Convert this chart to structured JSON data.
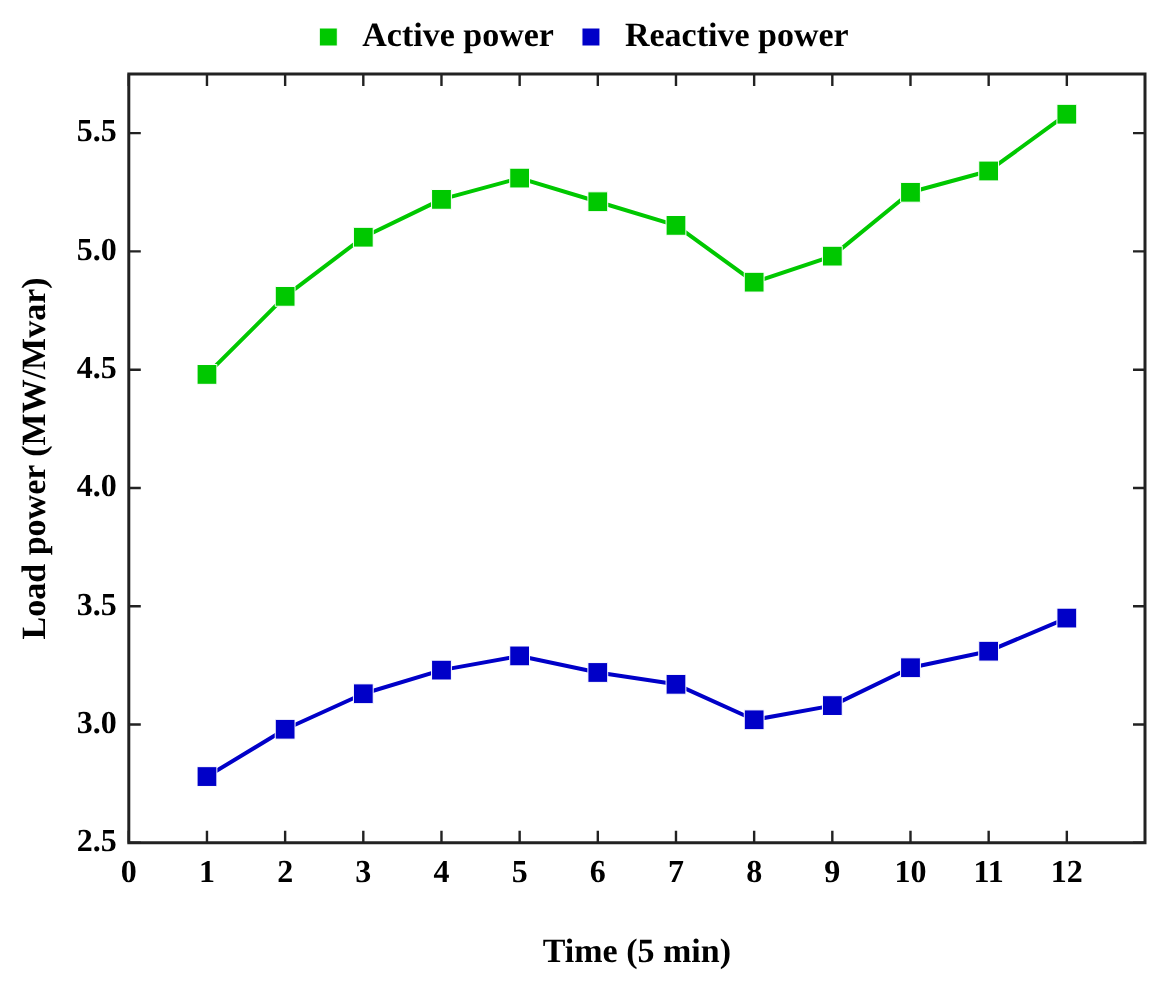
{
  "chart_data": {
    "type": "line",
    "xlabel": "Time (5 min)",
    "ylabel": "Load power (MW/Mvar)",
    "x": [
      1,
      2,
      3,
      4,
      5,
      6,
      7,
      8,
      9,
      10,
      11,
      12
    ],
    "series": [
      {
        "name": "Active power",
        "color": "#00c800",
        "values": [
          4.48,
          4.81,
          5.06,
          5.22,
          5.31,
          5.21,
          5.11,
          4.87,
          4.98,
          5.25,
          5.34,
          5.58
        ]
      },
      {
        "name": "Reactive power",
        "color": "#0000c8",
        "values": [
          2.78,
          2.98,
          3.13,
          3.23,
          3.29,
          3.22,
          3.17,
          3.02,
          3.08,
          3.24,
          3.31,
          3.45
        ]
      }
    ],
    "xlim": [
      0,
      13
    ],
    "xticks": [
      0,
      1,
      2,
      3,
      4,
      5,
      6,
      7,
      8,
      9,
      10,
      11,
      12
    ],
    "ylim": [
      2.5,
      5.75
    ],
    "yticks": [
      2.5,
      {
        "value": 3,
        "label": "3.0"
      },
      3.5,
      {
        "value": 4,
        "label": "4.0"
      },
      4.5,
      {
        "value": 5,
        "label": "5.0"
      },
      5.5
    ],
    "grid": false,
    "legend": "top",
    "marker": "square",
    "line_style": "solid"
  }
}
